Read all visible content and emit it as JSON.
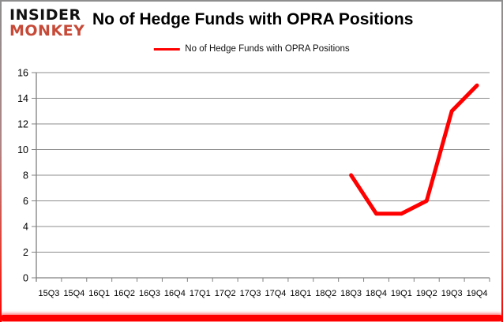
{
  "header": {
    "logo_line1": "INSIDER",
    "logo_line2": "MONKEY",
    "title": "No of Hedge Funds with OPRA Positions"
  },
  "legend": {
    "label": "No of Hedge Funds with OPRA Positions"
  },
  "colors": {
    "line": "#ff0000",
    "grid": "#8c8c8c",
    "axis": "#808080",
    "tick_label": "#000000",
    "logo_black": "#111111",
    "logo_red": "#c74a38",
    "frame_red": "#ff0000",
    "frame_grey": "#8e8e8e"
  },
  "chart_data": {
    "type": "line",
    "title": "No of Hedge Funds with OPRA Positions",
    "xlabel": "",
    "ylabel": "",
    "categories": [
      "15Q3",
      "15Q4",
      "16Q1",
      "16Q2",
      "16Q3",
      "16Q4",
      "17Q1",
      "17Q2",
      "17Q3",
      "17Q4",
      "18Q1",
      "18Q2",
      "18Q3",
      "18Q4",
      "19Q1",
      "19Q2",
      "19Q3",
      "19Q4"
    ],
    "series": [
      {
        "name": "No of Hedge Funds with OPRA Positions",
        "color": "#ff0000",
        "values": [
          null,
          null,
          null,
          null,
          null,
          null,
          null,
          null,
          null,
          null,
          null,
          null,
          8,
          5,
          5,
          6,
          13,
          15
        ]
      }
    ],
    "ylim": [
      0,
      16
    ],
    "ytick_step": 2,
    "grid": true,
    "legend_position": "top-center"
  }
}
